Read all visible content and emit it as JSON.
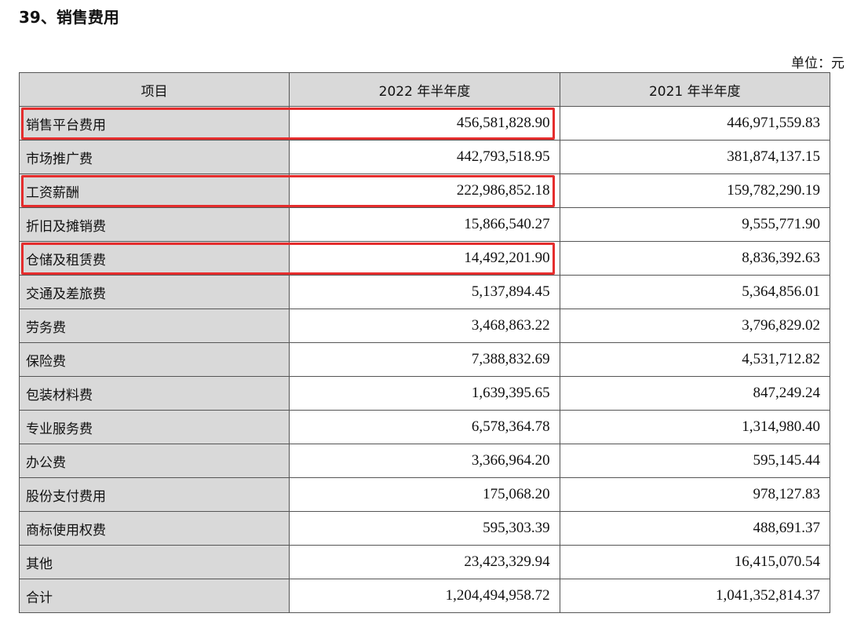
{
  "title": "39、销售费用",
  "unit": "单位：元",
  "highlight_color": "#e52d2d",
  "headers": [
    "项目",
    "2022 年半年度",
    "2021 年半年度"
  ],
  "rows": [
    {
      "item": "销售平台费用",
      "y2022": "456,581,828.90",
      "y2021": "446,971,559.83",
      "highlighted": true
    },
    {
      "item": "市场推广费",
      "y2022": "442,793,518.95",
      "y2021": "381,874,137.15",
      "highlighted": false
    },
    {
      "item": "工资薪酬",
      "y2022": "222,986,852.18",
      "y2021": "159,782,290.19",
      "highlighted": true
    },
    {
      "item": "折旧及摊销费",
      "y2022": "15,866,540.27",
      "y2021": "9,555,771.90",
      "highlighted": false
    },
    {
      "item": "仓储及租赁费",
      "y2022": "14,492,201.90",
      "y2021": "8,836,392.63",
      "highlighted": true
    },
    {
      "item": "交通及差旅费",
      "y2022": "5,137,894.45",
      "y2021": "5,364,856.01",
      "highlighted": false
    },
    {
      "item": "劳务费",
      "y2022": "3,468,863.22",
      "y2021": "3,796,829.02",
      "highlighted": false
    },
    {
      "item": "保险费",
      "y2022": "7,388,832.69",
      "y2021": "4,531,712.82",
      "highlighted": false
    },
    {
      "item": "包装材料费",
      "y2022": "1,639,395.65",
      "y2021": "847,249.24",
      "highlighted": false
    },
    {
      "item": "专业服务费",
      "y2022": "6,578,364.78",
      "y2021": "1,314,980.40",
      "highlighted": false
    },
    {
      "item": "办公费",
      "y2022": "3,366,964.20",
      "y2021": "595,145.44",
      "highlighted": false
    },
    {
      "item": "股份支付费用",
      "y2022": "175,068.20",
      "y2021": "978,127.83",
      "highlighted": false
    },
    {
      "item": "商标使用权费",
      "y2022": "595,303.39",
      "y2021": "488,691.37",
      "highlighted": false
    },
    {
      "item": "其他",
      "y2022": "23,423,329.94",
      "y2021": "16,415,070.54",
      "highlighted": false
    },
    {
      "item": "合计",
      "y2022": "1,204,494,958.72",
      "y2021": "1,041,352,814.37",
      "highlighted": false
    }
  ]
}
